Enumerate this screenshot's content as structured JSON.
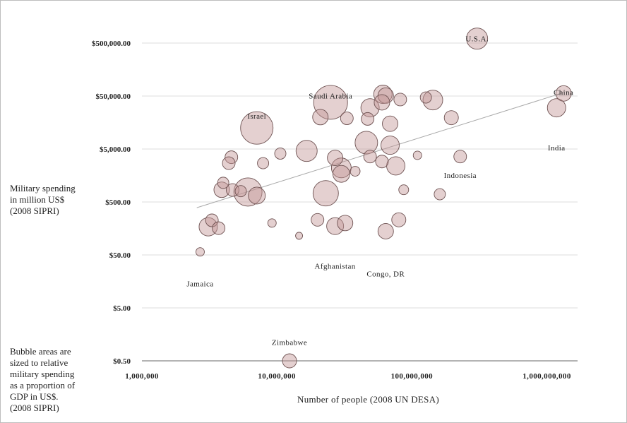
{
  "chart_data": {
    "type": "scatter",
    "title": "",
    "xlabel": "Number of people (2008 UN DESA)",
    "ylabel": "Military spending\nin million US$\n(2008 SIPRI)",
    "note": "Bubble areas are\nsized to relative\nmilitary spending\nas a proportion of\nGDP in US$.\n(2008 SIPRI)",
    "x_scale": "log",
    "y_scale": "log",
    "xlim": [
      1000000,
      1500000000
    ],
    "ylim": [
      0.5,
      800000
    ],
    "x_ticks": [
      1000000,
      10000000,
      100000000,
      1000000000
    ],
    "x_tick_labels": [
      "1,000,000",
      "10,000,000",
      "100,000,000",
      "1,000,000,000"
    ],
    "y_ticks": [
      0.5,
      5,
      50,
      500,
      5000,
      50000,
      500000
    ],
    "y_tick_labels": [
      "$0.50",
      "$5.00",
      "$50.00",
      "$500.00",
      "$5,000.00",
      "$50,000.00",
      "$500,000.00"
    ],
    "grid": "horizontal",
    "trendline": {
      "x": [
        2550000,
        1330000000
      ],
      "y": [
        390,
        58000
      ]
    },
    "labels": [
      {
        "text": "U.S.A.",
        "x": 304000000,
        "y": 607000
      },
      {
        "text": "China",
        "x": 1330000000,
        "y": 59000
      },
      {
        "text": "India",
        "x": 1180000000,
        "y": 5300
      },
      {
        "text": "Saudi Arabia",
        "x": 25000000,
        "y": 50800
      },
      {
        "text": "Israel",
        "x": 7100000,
        "y": 21300
      },
      {
        "text": "Indonesia",
        "x": 228000000,
        "y": 1600
      },
      {
        "text": "Afghanistan",
        "x": 27000000,
        "y": 31
      },
      {
        "text": "Congo, DR",
        "x": 64000000,
        "y": 22
      },
      {
        "text": "Jamaica",
        "x": 2700000,
        "y": 14.5
      },
      {
        "text": "Zimbabwe",
        "x": 12400000,
        "y": 1.12
      }
    ],
    "points": [
      {
        "name": "U.S.A.",
        "x": 304000000,
        "y": 607000,
        "size": 15
      },
      {
        "name": "China",
        "x": 1330000000,
        "y": 56000,
        "size": 11
      },
      {
        "name": "India",
        "x": 1180000000,
        "y": 30000,
        "size": 13
      },
      {
        "name": "Saudi Arabia",
        "x": 25000000,
        "y": 38000,
        "size": 24
      },
      {
        "name": "Israel",
        "x": 7100000,
        "y": 12500,
        "size": 23
      },
      {
        "name": "Indonesia",
        "x": 228000000,
        "y": 3600,
        "size": 9
      },
      {
        "name": "Afghanistan",
        "x": 27000000,
        "y": 175,
        "size": 12
      },
      {
        "name": "Congo, DR",
        "x": 64000000,
        "y": 140,
        "size": 11
      },
      {
        "name": "Jamaica",
        "x": 2700000,
        "y": 57,
        "size": 6
      },
      {
        "name": "Zimbabwe",
        "x": 12400000,
        "y": 0.5,
        "size": 10
      },
      {
        "name": "",
        "x": 61000000,
        "y": 54000,
        "size": 13
      },
      {
        "name": "",
        "x": 64000000,
        "y": 51000,
        "size": 11
      },
      {
        "name": "",
        "x": 82000000,
        "y": 43000,
        "size": 9
      },
      {
        "name": "",
        "x": 127000000,
        "y": 47000,
        "size": 8
      },
      {
        "name": "",
        "x": 143000000,
        "y": 42000,
        "size": 14
      },
      {
        "name": "",
        "x": 60000000,
        "y": 38000,
        "size": 11
      },
      {
        "name": "",
        "x": 49000000,
        "y": 30000,
        "size": 13
      },
      {
        "name": "",
        "x": 21000000,
        "y": 20000,
        "size": 11
      },
      {
        "name": "",
        "x": 33000000,
        "y": 19000,
        "size": 9
      },
      {
        "name": "",
        "x": 47000000,
        "y": 18500,
        "size": 9
      },
      {
        "name": "",
        "x": 69000000,
        "y": 15000,
        "size": 11
      },
      {
        "name": "",
        "x": 196000000,
        "y": 19500,
        "size": 10
      },
      {
        "name": "",
        "x": 46000000,
        "y": 6600,
        "size": 16
      },
      {
        "name": "",
        "x": 69000000,
        "y": 5900,
        "size": 13
      },
      {
        "name": "",
        "x": 16600000,
        "y": 4600,
        "size": 15
      },
      {
        "name": "",
        "x": 10600000,
        "y": 4100,
        "size": 8
      },
      {
        "name": "",
        "x": 110000000,
        "y": 3800,
        "size": 6
      },
      {
        "name": "",
        "x": 27000000,
        "y": 3400,
        "size": 11
      },
      {
        "name": "",
        "x": 49000000,
        "y": 3600,
        "size": 9
      },
      {
        "name": "",
        "x": 60000000,
        "y": 2900,
        "size": 9
      },
      {
        "name": "",
        "x": 76000000,
        "y": 2400,
        "size": 13
      },
      {
        "name": "",
        "x": 30000000,
        "y": 2200,
        "size": 14
      },
      {
        "name": "",
        "x": 30000000,
        "y": 1700,
        "size": 12
      },
      {
        "name": "",
        "x": 38000000,
        "y": 1900,
        "size": 7
      },
      {
        "name": "",
        "x": 4600000,
        "y": 3500,
        "size": 9
      },
      {
        "name": "",
        "x": 4400000,
        "y": 2700,
        "size": 9
      },
      {
        "name": "",
        "x": 7900000,
        "y": 2700,
        "size": 8
      },
      {
        "name": "",
        "x": 4000000,
        "y": 1150,
        "size": 8
      },
      {
        "name": "",
        "x": 3900000,
        "y": 850,
        "size": 11
      },
      {
        "name": "",
        "x": 4700000,
        "y": 840,
        "size": 9
      },
      {
        "name": "",
        "x": 5400000,
        "y": 800,
        "size": 8
      },
      {
        "name": "",
        "x": 6100000,
        "y": 770,
        "size": 20
      },
      {
        "name": "",
        "x": 7100000,
        "y": 660,
        "size": 12
      },
      {
        "name": "",
        "x": 23000000,
        "y": 730,
        "size": 18
      },
      {
        "name": "",
        "x": 87000000,
        "y": 850,
        "size": 7
      },
      {
        "name": "",
        "x": 161000000,
        "y": 700,
        "size": 8
      },
      {
        "name": "",
        "x": 3300000,
        "y": 225,
        "size": 9
      },
      {
        "name": "",
        "x": 3100000,
        "y": 170,
        "size": 13
      },
      {
        "name": "",
        "x": 3700000,
        "y": 160,
        "size": 9
      },
      {
        "name": "",
        "x": 9200000,
        "y": 200,
        "size": 6
      },
      {
        "name": "",
        "x": 14600000,
        "y": 115,
        "size": 5
      },
      {
        "name": "",
        "x": 20000000,
        "y": 230,
        "size": 9
      },
      {
        "name": "",
        "x": 32000000,
        "y": 200,
        "size": 11
      },
      {
        "name": "",
        "x": 80000000,
        "y": 230,
        "size": 10
      }
    ]
  }
}
